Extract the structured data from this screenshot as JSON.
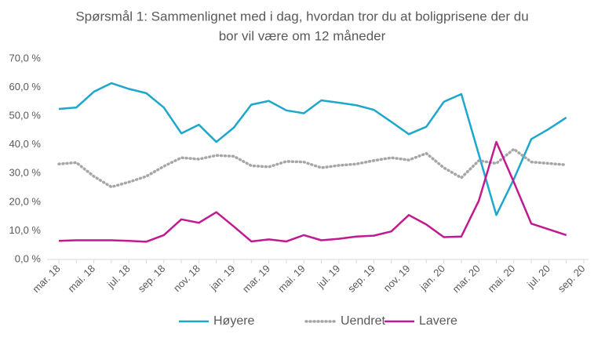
{
  "chart_data": {
    "type": "line",
    "title": [
      "Spørsmål 1: Sammenlignet med i dag, hvordan tror du at boligprisene der du",
      "bor vil være om 12 måneder"
    ],
    "categories": [
      "mar. 18",
      null,
      "mai. 18",
      null,
      "jul. 18",
      null,
      "sep. 18",
      null,
      "nov. 18",
      null,
      "jan. 19",
      null,
      "mar. 19",
      null,
      "mai. 19",
      null,
      "jul. 19",
      null,
      "sep. 19",
      null,
      "nov. 19",
      null,
      "jan. 20",
      null,
      "mar. 20",
      null,
      "mai. 20",
      null,
      "jul. 20",
      null,
      "sep. 20"
    ],
    "series": [
      {
        "name": "Høyere",
        "color": "#1ea7cc",
        "dash": "solid",
        "values": [
          52.5,
          53,
          58.5,
          61.5,
          59.5,
          58,
          53,
          44,
          47,
          41,
          46,
          54,
          55.3,
          52,
          51,
          55.5,
          54.7,
          53.8,
          52.2,
          48,
          43.7,
          46.3,
          55,
          57.7,
          36.6,
          15.5,
          28,
          42,
          45.5,
          49.5,
          null
        ]
      },
      {
        "name": "Uendret",
        "color": "#a6a6a6",
        "dash": "dotted",
        "values": [
          33.3,
          33.8,
          29,
          25.3,
          27,
          29,
          32.5,
          35.5,
          35,
          36.3,
          36,
          32.7,
          32.3,
          34.2,
          34,
          32,
          32.8,
          33.3,
          34.5,
          35.5,
          34.7,
          37,
          32,
          28.5,
          34.5,
          33.5,
          38.5,
          34,
          33.5,
          33,
          null
        ]
      },
      {
        "name": "Lavere",
        "color": "#c1198f",
        "dash": "solid",
        "values": [
          6.5,
          6.7,
          6.7,
          6.7,
          6.5,
          6.2,
          8.5,
          14,
          12.8,
          16.5,
          11.5,
          6.3,
          7,
          6.3,
          8.5,
          6.7,
          7.2,
          8,
          8.3,
          9.8,
          15.5,
          12.2,
          7.8,
          8,
          20.5,
          41,
          27,
          12.5,
          10.5,
          8.5,
          null
        ]
      }
    ],
    "ylim": [
      0,
      70
    ],
    "yticks": [
      {
        "value": 0,
        "label": "0,0 %"
      },
      {
        "value": 10,
        "label": "10,0 %"
      },
      {
        "value": 20,
        "label": "20,0 %"
      },
      {
        "value": 30,
        "label": "30,0 %"
      },
      {
        "value": 40,
        "label": "40,0 %"
      },
      {
        "value": 50,
        "label": "50,0 %"
      },
      {
        "value": 60,
        "label": "60,0 %"
      },
      {
        "value": 70,
        "label": "70,0 %"
      }
    ],
    "grid": false,
    "legend": "bottom"
  }
}
